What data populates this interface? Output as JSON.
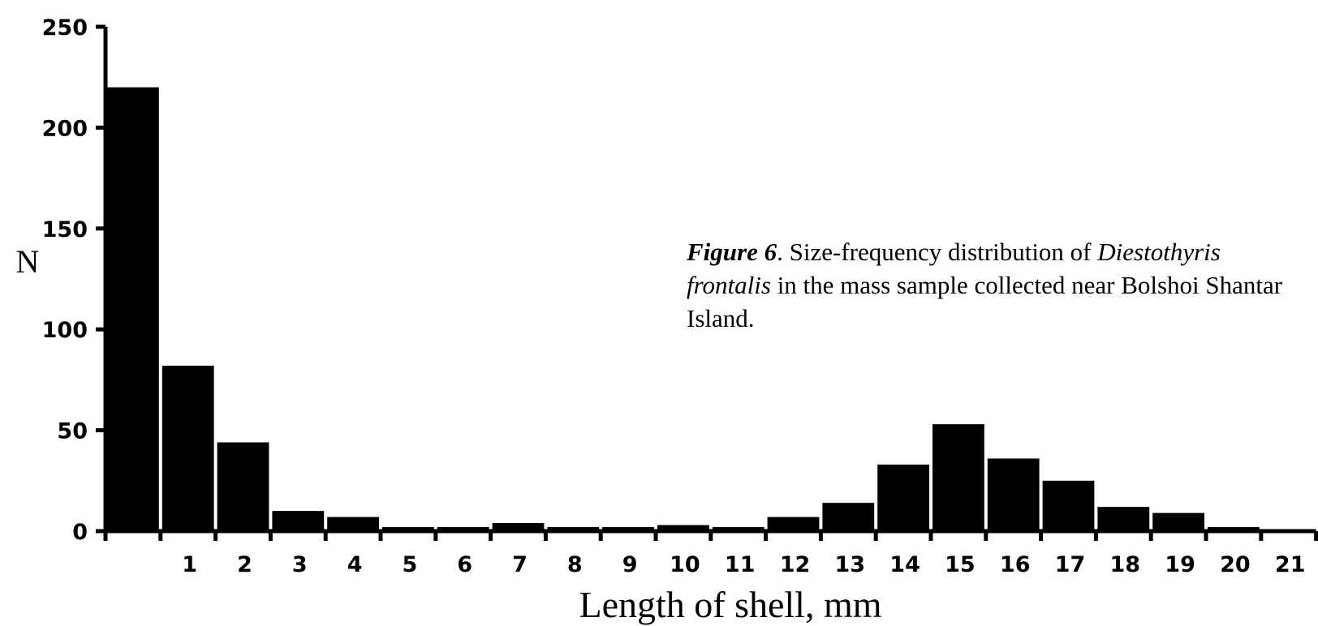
{
  "chart_data": {
    "type": "bar",
    "xlabel": "Length of shell, mm",
    "ylabel": "N",
    "ylim": [
      0,
      250
    ],
    "yticks": [
      0,
      50,
      100,
      150,
      200,
      250
    ],
    "categories": [
      "",
      "1",
      "2",
      "3",
      "4",
      "5",
      "6",
      "7",
      "8",
      "9",
      "10",
      "11",
      "12",
      "13",
      "14",
      "15",
      "16",
      "17",
      "18",
      "19",
      "20",
      "21"
    ],
    "values": [
      220,
      82,
      44,
      10,
      7,
      2,
      2,
      4,
      2,
      2,
      3,
      2,
      7,
      14,
      33,
      53,
      36,
      25,
      12,
      9,
      2,
      1
    ],
    "bar_color": "#000000",
    "grid": false,
    "legend": "none"
  },
  "caption": {
    "figure_label": "Figure 6",
    "text_1": ". Size-frequency distribution of ",
    "species": "Diestothyris frontalis",
    "text_2": " in the mass sample collected near Bolshoi Shantar Island."
  }
}
